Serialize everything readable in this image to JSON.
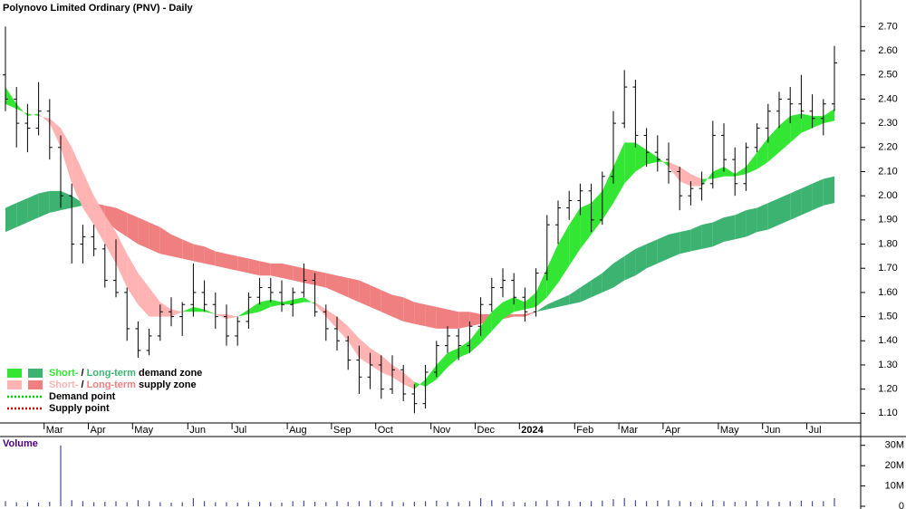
{
  "chart_data": {
    "type": "candlestick",
    "title": "Polynovo Limited Ordinary (PNV) - Daily",
    "categories": [
      null,
      null,
      null,
      null,
      "Mar",
      null,
      null,
      null,
      "Apr",
      null,
      null,
      null,
      "May",
      null,
      null,
      null,
      null,
      "Jun",
      null,
      null,
      null,
      "Jul",
      null,
      null,
      null,
      null,
      "Aug",
      null,
      null,
      null,
      "Sep",
      null,
      null,
      null,
      "Oct",
      null,
      null,
      null,
      null,
      "Nov",
      null,
      null,
      null,
      "Dec",
      null,
      null,
      null,
      "2024",
      null,
      null,
      null,
      null,
      "Feb",
      null,
      null,
      null,
      "Mar",
      null,
      null,
      null,
      "Apr",
      null,
      null,
      null,
      null,
      "May",
      null,
      null,
      null,
      "Jun",
      null,
      null,
      null,
      "Jul",
      null,
      null
    ],
    "ohlc": [
      [
        2.5,
        2.7,
        2.35,
        2.4
      ],
      [
        2.4,
        2.45,
        2.2,
        2.3
      ],
      [
        2.3,
        2.38,
        2.18,
        2.28
      ],
      [
        2.28,
        2.47,
        2.25,
        2.35
      ],
      [
        2.35,
        2.4,
        2.15,
        2.2
      ],
      [
        2.2,
        2.25,
        1.95,
        2.0
      ],
      [
        2.0,
        2.05,
        1.72,
        1.8
      ],
      [
        1.8,
        1.88,
        1.72,
        1.83
      ],
      [
        1.83,
        1.88,
        1.75,
        1.78
      ],
      [
        1.78,
        1.8,
        1.62,
        1.65
      ],
      [
        1.65,
        1.82,
        1.58,
        1.6
      ],
      [
        1.6,
        1.62,
        1.4,
        1.45
      ],
      [
        1.45,
        1.48,
        1.33,
        1.36
      ],
      [
        1.36,
        1.45,
        1.34,
        1.42
      ],
      [
        1.42,
        1.55,
        1.4,
        1.52
      ],
      [
        1.52,
        1.58,
        1.46,
        1.5
      ],
      [
        1.5,
        1.56,
        1.42,
        1.55
      ],
      [
        1.55,
        1.72,
        1.5,
        1.6
      ],
      [
        1.6,
        1.65,
        1.52,
        1.55
      ],
      [
        1.55,
        1.6,
        1.45,
        1.5
      ],
      [
        1.5,
        1.55,
        1.38,
        1.42
      ],
      [
        1.42,
        1.5,
        1.38,
        1.48
      ],
      [
        1.48,
        1.6,
        1.45,
        1.58
      ],
      [
        1.58,
        1.66,
        1.55,
        1.62
      ],
      [
        1.62,
        1.66,
        1.56,
        1.6
      ],
      [
        1.6,
        1.65,
        1.52,
        1.55
      ],
      [
        1.55,
        1.62,
        1.5,
        1.6
      ],
      [
        1.6,
        1.72,
        1.58,
        1.65
      ],
      [
        1.65,
        1.68,
        1.5,
        1.52
      ],
      [
        1.52,
        1.55,
        1.4,
        1.45
      ],
      [
        1.45,
        1.5,
        1.36,
        1.4
      ],
      [
        1.4,
        1.42,
        1.28,
        1.32
      ],
      [
        1.32,
        1.38,
        1.18,
        1.25
      ],
      [
        1.25,
        1.35,
        1.2,
        1.3
      ],
      [
        1.3,
        1.34,
        1.16,
        1.2
      ],
      [
        1.2,
        1.34,
        1.18,
        1.28
      ],
      [
        1.28,
        1.3,
        1.15,
        1.18
      ],
      [
        1.18,
        1.22,
        1.1,
        1.14
      ],
      [
        1.14,
        1.3,
        1.12,
        1.27
      ],
      [
        1.27,
        1.4,
        1.25,
        1.38
      ],
      [
        1.38,
        1.46,
        1.35,
        1.42
      ],
      [
        1.42,
        1.45,
        1.32,
        1.38
      ],
      [
        1.38,
        1.48,
        1.35,
        1.46
      ],
      [
        1.46,
        1.58,
        1.42,
        1.55
      ],
      [
        1.55,
        1.66,
        1.52,
        1.62
      ],
      [
        1.62,
        1.7,
        1.58,
        1.65
      ],
      [
        1.65,
        1.68,
        1.55,
        1.58
      ],
      [
        1.58,
        1.62,
        1.48,
        1.52
      ],
      [
        1.52,
        1.7,
        1.5,
        1.68
      ],
      [
        1.68,
        1.92,
        1.65,
        1.88
      ],
      [
        1.88,
        1.98,
        1.8,
        1.95
      ],
      [
        1.95,
        2.02,
        1.9,
        1.98
      ],
      [
        1.98,
        2.05,
        1.92,
        2.02
      ],
      [
        2.02,
        2.05,
        1.85,
        1.9
      ],
      [
        1.9,
        2.1,
        1.88,
        2.08
      ],
      [
        2.08,
        2.35,
        2.05,
        2.3
      ],
      [
        2.3,
        2.52,
        2.28,
        2.45
      ],
      [
        2.45,
        2.48,
        2.2,
        2.25
      ],
      [
        2.25,
        2.28,
        2.12,
        2.18
      ],
      [
        2.18,
        2.25,
        2.1,
        2.15
      ],
      [
        2.15,
        2.22,
        2.05,
        2.1
      ],
      [
        2.1,
        2.12,
        1.94,
        2.0
      ],
      [
        2.0,
        2.06,
        1.96,
        2.03
      ],
      [
        2.03,
        2.1,
        1.98,
        2.05
      ],
      [
        2.05,
        2.31,
        2.03,
        2.25
      ],
      [
        2.25,
        2.3,
        2.1,
        2.15
      ],
      [
        2.15,
        2.2,
        2.0,
        2.05
      ],
      [
        2.05,
        2.22,
        2.02,
        2.2
      ],
      [
        2.2,
        2.3,
        2.18,
        2.28
      ],
      [
        2.28,
        2.38,
        2.22,
        2.35
      ],
      [
        2.35,
        2.43,
        2.28,
        2.4
      ],
      [
        2.4,
        2.45,
        2.3,
        2.38
      ],
      [
        2.38,
        2.5,
        2.32,
        2.35
      ],
      [
        2.35,
        2.42,
        2.28,
        2.32
      ],
      [
        2.32,
        2.4,
        2.25,
        2.38
      ],
      [
        2.38,
        2.62,
        2.35,
        2.55
      ]
    ],
    "color": "#000000",
    "ylim": [
      1.06,
      2.81
    ],
    "yticks": [
      {
        "value": 1.1,
        "label": "1.10"
      },
      {
        "value": 1.2,
        "label": "1.20"
      },
      {
        "value": 1.3,
        "label": "1.30"
      },
      {
        "value": 1.4,
        "label": "1.40"
      },
      {
        "value": 1.5,
        "label": "1.50"
      },
      {
        "value": 1.6,
        "label": "1.60"
      },
      {
        "value": 1.7,
        "label": "1.70"
      },
      {
        "value": 1.8,
        "label": "1.80"
      },
      {
        "value": 1.9,
        "label": "1.90"
      },
      {
        "value": 2.0,
        "label": "2.00"
      },
      {
        "value": 2.1,
        "label": "2.10"
      },
      {
        "value": 2.2,
        "label": "2.20"
      },
      {
        "value": 2.3,
        "label": "2.30"
      },
      {
        "value": 2.4,
        "label": "2.40"
      },
      {
        "value": 2.5,
        "label": "2.50"
      },
      {
        "value": 2.6,
        "label": "2.60"
      },
      {
        "value": 2.7,
        "label": "2.70"
      }
    ],
    "zones": {
      "short": {
        "demand_color": "#33e633",
        "supply_color": "#ffb3b3",
        "values": [
          [
            2.45,
            2.38
          ],
          [
            2.38,
            2.36
          ],
          [
            2.33,
            2.34
          ],
          [
            2.34,
            2.33
          ],
          [
            2.3,
            2.32
          ],
          [
            2.2,
            2.28
          ],
          [
            2.05,
            2.2
          ],
          [
            1.95,
            2.1
          ],
          [
            1.88,
            2.0
          ],
          [
            1.8,
            1.92
          ],
          [
            1.72,
            1.85
          ],
          [
            1.62,
            1.76
          ],
          [
            1.55,
            1.68
          ],
          [
            1.5,
            1.62
          ],
          [
            1.5,
            1.56
          ],
          [
            1.5,
            1.53
          ],
          [
            1.52,
            1.52
          ],
          [
            1.54,
            1.52
          ],
          [
            1.53,
            1.52
          ],
          [
            1.51,
            1.51
          ],
          [
            1.49,
            1.51
          ],
          [
            1.5,
            1.5
          ],
          [
            1.53,
            1.51
          ],
          [
            1.56,
            1.52
          ],
          [
            1.57,
            1.54
          ],
          [
            1.56,
            1.55
          ],
          [
            1.57,
            1.55
          ],
          [
            1.58,
            1.56
          ],
          [
            1.55,
            1.56
          ],
          [
            1.5,
            1.53
          ],
          [
            1.45,
            1.5
          ],
          [
            1.4,
            1.46
          ],
          [
            1.33,
            1.41
          ],
          [
            1.3,
            1.37
          ],
          [
            1.27,
            1.34
          ],
          [
            1.25,
            1.3
          ],
          [
            1.22,
            1.27
          ],
          [
            1.2,
            1.23
          ],
          [
            1.24,
            1.21
          ],
          [
            1.3,
            1.24
          ],
          [
            1.35,
            1.29
          ],
          [
            1.37,
            1.33
          ],
          [
            1.4,
            1.35
          ],
          [
            1.46,
            1.39
          ],
          [
            1.52,
            1.44
          ],
          [
            1.56,
            1.49
          ],
          [
            1.58,
            1.52
          ],
          [
            1.56,
            1.53
          ],
          [
            1.6,
            1.54
          ],
          [
            1.7,
            1.58
          ],
          [
            1.8,
            1.64
          ],
          [
            1.88,
            1.71
          ],
          [
            1.95,
            1.78
          ],
          [
            1.97,
            1.84
          ],
          [
            2.02,
            1.9
          ],
          [
            2.12,
            1.97
          ],
          [
            2.22,
            2.05
          ],
          [
            2.22,
            2.1
          ],
          [
            2.19,
            2.13
          ],
          [
            2.16,
            2.14
          ],
          [
            2.12,
            2.14
          ],
          [
            2.06,
            2.12
          ],
          [
            2.04,
            2.09
          ],
          [
            2.04,
            2.07
          ],
          [
            2.1,
            2.07
          ],
          [
            2.12,
            2.08
          ],
          [
            2.09,
            2.08
          ],
          [
            2.12,
            2.09
          ],
          [
            2.18,
            2.11
          ],
          [
            2.24,
            2.14
          ],
          [
            2.29,
            2.18
          ],
          [
            2.33,
            2.22
          ],
          [
            2.34,
            2.26
          ],
          [
            2.33,
            2.28
          ],
          [
            2.33,
            2.3
          ],
          [
            2.36,
            2.31
          ]
        ]
      },
      "long": {
        "demand_color": "#3cb371",
        "supply_color": "#f08080",
        "values": [
          [
            1.95,
            1.85
          ],
          [
            1.97,
            1.87
          ],
          [
            1.99,
            1.89
          ],
          [
            2.01,
            1.91
          ],
          [
            2.02,
            1.93
          ],
          [
            2.02,
            1.94
          ],
          [
            2.0,
            1.95
          ],
          [
            1.97,
            1.96
          ],
          [
            1.94,
            1.97
          ],
          [
            1.9,
            1.96
          ],
          [
            1.86,
            1.95
          ],
          [
            1.83,
            1.93
          ],
          [
            1.8,
            1.91
          ],
          [
            1.78,
            1.89
          ],
          [
            1.76,
            1.87
          ],
          [
            1.75,
            1.84
          ],
          [
            1.74,
            1.82
          ],
          [
            1.73,
            1.8
          ],
          [
            1.72,
            1.79
          ],
          [
            1.71,
            1.77
          ],
          [
            1.7,
            1.76
          ],
          [
            1.69,
            1.75
          ],
          [
            1.68,
            1.74
          ],
          [
            1.67,
            1.73
          ],
          [
            1.67,
            1.72
          ],
          [
            1.66,
            1.72
          ],
          [
            1.65,
            1.71
          ],
          [
            1.64,
            1.7
          ],
          [
            1.63,
            1.69
          ],
          [
            1.62,
            1.68
          ],
          [
            1.6,
            1.67
          ],
          [
            1.58,
            1.66
          ],
          [
            1.56,
            1.65
          ],
          [
            1.54,
            1.63
          ],
          [
            1.52,
            1.61
          ],
          [
            1.5,
            1.59
          ],
          [
            1.48,
            1.58
          ],
          [
            1.47,
            1.56
          ],
          [
            1.46,
            1.55
          ],
          [
            1.45,
            1.54
          ],
          [
            1.45,
            1.53
          ],
          [
            1.45,
            1.52
          ],
          [
            1.46,
            1.52
          ],
          [
            1.47,
            1.51
          ],
          [
            1.48,
            1.51
          ],
          [
            1.49,
            1.51
          ],
          [
            1.5,
            1.51
          ],
          [
            1.5,
            1.51
          ],
          [
            1.52,
            1.52
          ],
          [
            1.55,
            1.53
          ],
          [
            1.57,
            1.54
          ],
          [
            1.59,
            1.55
          ],
          [
            1.62,
            1.56
          ],
          [
            1.65,
            1.58
          ],
          [
            1.68,
            1.6
          ],
          [
            1.72,
            1.62
          ],
          [
            1.75,
            1.65
          ],
          [
            1.78,
            1.67
          ],
          [
            1.8,
            1.7
          ],
          [
            1.82,
            1.72
          ],
          [
            1.84,
            1.74
          ],
          [
            1.85,
            1.76
          ],
          [
            1.86,
            1.77
          ],
          [
            1.88,
            1.78
          ],
          [
            1.89,
            1.79
          ],
          [
            1.91,
            1.81
          ],
          [
            1.92,
            1.82
          ],
          [
            1.94,
            1.83
          ],
          [
            1.95,
            1.85
          ],
          [
            1.97,
            1.86
          ],
          [
            1.99,
            1.88
          ],
          [
            2.01,
            1.9
          ],
          [
            2.03,
            1.92
          ],
          [
            2.05,
            1.94
          ],
          [
            2.07,
            1.96
          ],
          [
            2.08,
            1.97
          ]
        ]
      }
    },
    "legend": [
      {
        "parts": [
          "Short-",
          " / ",
          "Long-term",
          " demand zone"
        ]
      },
      {
        "parts": [
          "Short-",
          " / ",
          "Long-term",
          " supply zone"
        ]
      },
      {
        "parts": [
          "Demand point"
        ],
        "color": "#00cc00"
      },
      {
        "parts": [
          "Supply point"
        ],
        "color": "#cc0000"
      }
    ],
    "volume": {
      "label": "Volume",
      "color": "#4a4a9a",
      "values": [
        2.5,
        2,
        2,
        1.8,
        2.2,
        30,
        3,
        2.5,
        2,
        2.2,
        2.5,
        2,
        3,
        2.5,
        2,
        1.8,
        2,
        4,
        2.5,
        2,
        2,
        1.8,
        2,
        2.2,
        2,
        1.8,
        2.5,
        2.8,
        2.2,
        2,
        2.5,
        2.2,
        2.5,
        2.8,
        2.2,
        2.5,
        2,
        2.2,
        2.5,
        2.8,
        2.2,
        2,
        2.5,
        4,
        3,
        2.5,
        2.2,
        1.8,
        2.5,
        3,
        2.8,
        2.5,
        2.2,
        2.5,
        2.8,
        3.5,
        4,
        3,
        2.5,
        2.8,
        3,
        2.5,
        2.2,
        2,
        3,
        2.5,
        2.2,
        2.5,
        2.8,
        2.5,
        2.2,
        2.5,
        2.8,
        2.5,
        2.5,
        4
      ],
      "ylim": [
        0,
        33
      ],
      "yticks": [
        0,
        {
          "value": 10,
          "label": "10M"
        },
        {
          "value": 20,
          "label": "20M"
        },
        {
          "value": 30,
          "label": "30M"
        }
      ]
    }
  }
}
